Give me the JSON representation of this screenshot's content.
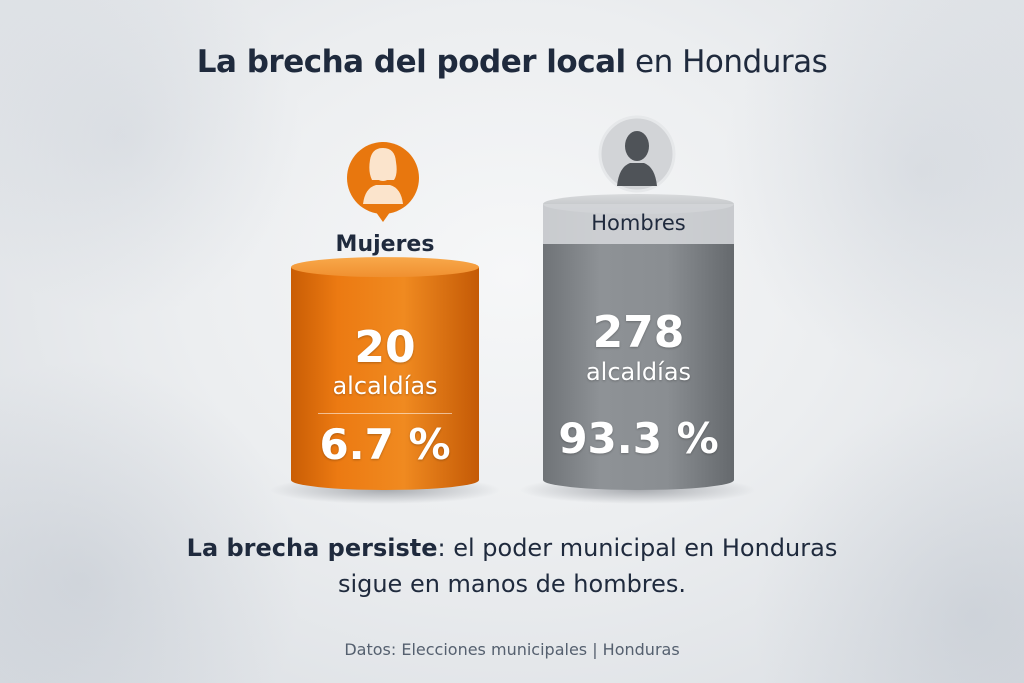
{
  "title": {
    "bold": "La brecha del poder local",
    "rest": "en Honduras"
  },
  "chart_data": {
    "type": "bar",
    "title": "La brecha del poder local en Honduras",
    "categories": [
      "Mujeres",
      "Hombres"
    ],
    "values": [
      20,
      278
    ],
    "unit": "alcaldías",
    "percent_labels": [
      "6.7 %",
      "93.3 %"
    ],
    "percentages": [
      6.7,
      93.3
    ],
    "colors": [
      "#e8770e",
      "#8a8e92"
    ],
    "grid": false,
    "legend": "none"
  },
  "labels": {
    "women": "Mujeres",
    "men": "Hombres",
    "women_value": "20",
    "men_value": "278",
    "women_unit": "alcaldías",
    "men_unit": "alcaldías",
    "women_pct": "6.7 %",
    "men_pct": "93.3 %"
  },
  "icons": {
    "women": "woman-avatar-icon",
    "men": "man-avatar-icon"
  },
  "summary": {
    "lead": "La brecha persiste",
    "rest_line1": ": el poder municipal en Honduras",
    "rest_line2": "sigue en manos de hombres."
  },
  "source": "Datos: Elecciones municipales | Honduras"
}
